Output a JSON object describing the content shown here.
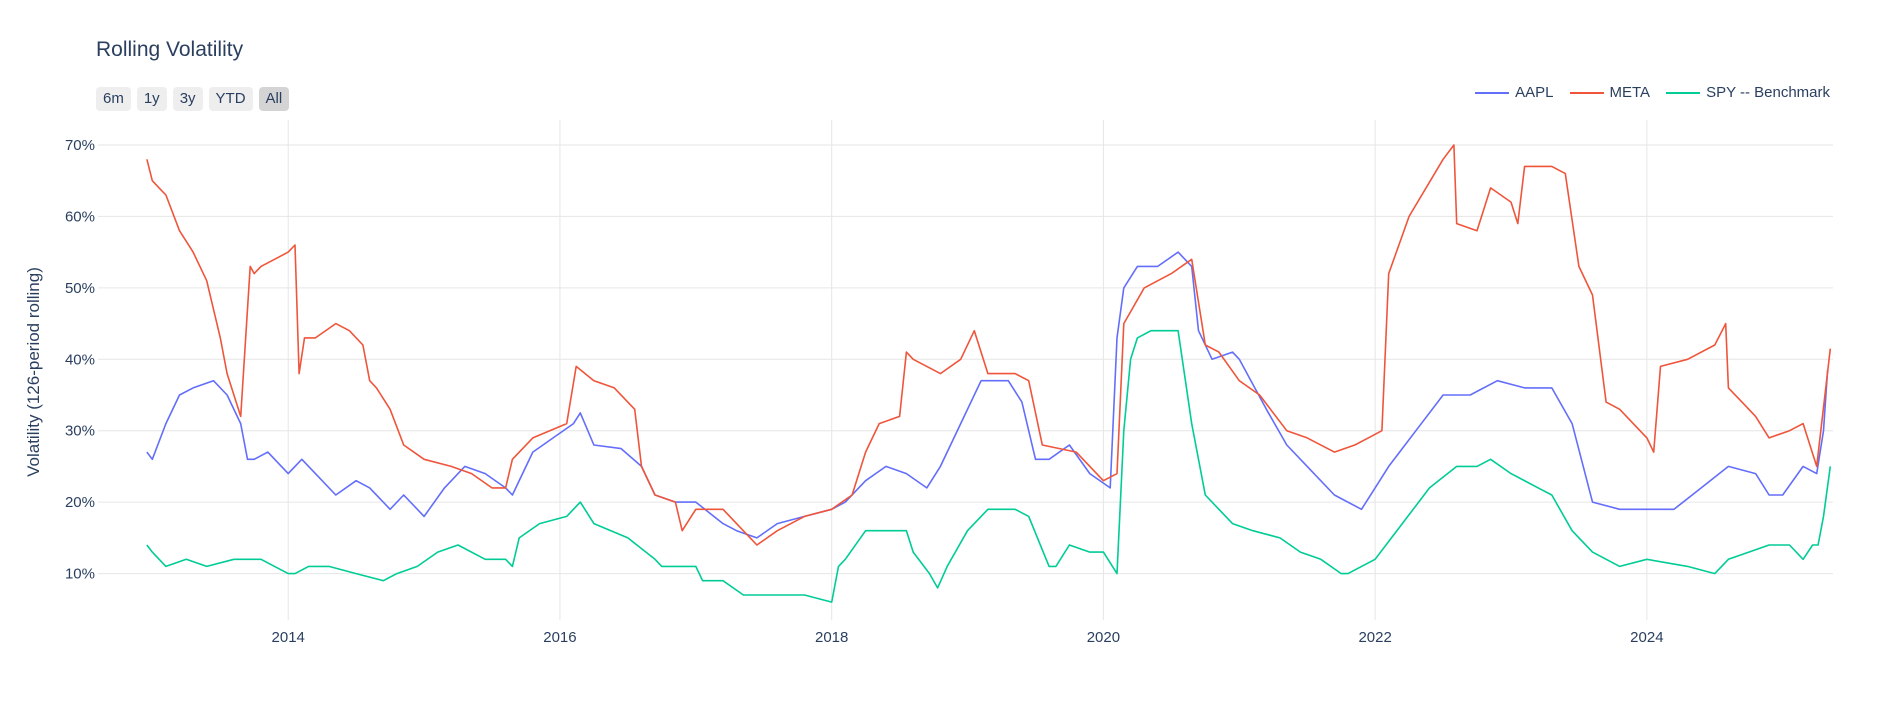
{
  "title": "Rolling Volatility",
  "range_buttons": [
    "6m",
    "1y",
    "3y",
    "YTD",
    "All"
  ],
  "active_range": "All",
  "colors": {
    "grid": "#e6e6e6",
    "text": "#2a3f5f",
    "background": "#ffffff"
  },
  "chart_data": {
    "type": "line",
    "title": "Rolling Volatility",
    "xlabel": "",
    "ylabel": "Volatility (126-period rolling)",
    "xlim": [
      2012.6,
      2025.37
    ],
    "ylim": [
      0.035,
      0.735
    ],
    "x_ticks": [
      2014,
      2016,
      2018,
      2020,
      2022,
      2024
    ],
    "x_tick_labels": [
      "2014",
      "2016",
      "2018",
      "2020",
      "2022",
      "2024"
    ],
    "y_ticks": [
      0.1,
      0.2,
      0.3,
      0.4,
      0.5,
      0.6,
      0.7
    ],
    "y_tick_labels": [
      "10%",
      "20%",
      "30%",
      "40%",
      "50%",
      "60%",
      "70%"
    ],
    "grid": true,
    "legend_position": "top-right",
    "series": [
      {
        "name": "AAPL",
        "color": "#636efa",
        "x": [
          2012.96,
          2013.0,
          2013.1,
          2013.2,
          2013.3,
          2013.45,
          2013.55,
          2013.65,
          2013.7,
          2013.75,
          2013.85,
          2014.0,
          2014.1,
          2014.2,
          2014.35,
          2014.5,
          2014.6,
          2014.75,
          2014.85,
          2015.0,
          2015.15,
          2015.3,
          2015.45,
          2015.6,
          2015.65,
          2015.8,
          2015.95,
          2016.1,
          2016.15,
          2016.25,
          2016.45,
          2016.6,
          2016.7,
          2016.85,
          2017.0,
          2017.2,
          2017.3,
          2017.45,
          2017.6,
          2017.8,
          2018.0,
          2018.1,
          2018.25,
          2018.4,
          2018.55,
          2018.7,
          2018.8,
          2018.95,
          2019.1,
          2019.3,
          2019.4,
          2019.5,
          2019.6,
          2019.75,
          2019.9,
          2020.05,
          2020.1,
          2020.15,
          2020.25,
          2020.4,
          2020.55,
          2020.65,
          2020.7,
          2020.8,
          2020.95,
          2021.0,
          2021.2,
          2021.35,
          2021.5,
          2021.7,
          2021.9,
          2022.0,
          2022.1,
          2022.3,
          2022.5,
          2022.7,
          2022.9,
          2023.1,
          2023.3,
          2023.45,
          2023.6,
          2023.8,
          2024.0,
          2024.2,
          2024.4,
          2024.6,
          2024.8,
          2024.9,
          2025.0,
          2025.15,
          2025.25,
          2025.3,
          2025.33
        ],
        "y": [
          0.27,
          0.26,
          0.31,
          0.35,
          0.36,
          0.37,
          0.35,
          0.31,
          0.26,
          0.26,
          0.27,
          0.24,
          0.26,
          0.24,
          0.21,
          0.23,
          0.22,
          0.19,
          0.21,
          0.18,
          0.22,
          0.25,
          0.24,
          0.22,
          0.21,
          0.27,
          0.29,
          0.31,
          0.325,
          0.28,
          0.275,
          0.25,
          0.21,
          0.2,
          0.2,
          0.17,
          0.16,
          0.15,
          0.17,
          0.18,
          0.19,
          0.2,
          0.23,
          0.25,
          0.24,
          0.22,
          0.25,
          0.31,
          0.37,
          0.37,
          0.34,
          0.26,
          0.26,
          0.28,
          0.24,
          0.22,
          0.43,
          0.5,
          0.53,
          0.53,
          0.55,
          0.53,
          0.44,
          0.4,
          0.41,
          0.4,
          0.33,
          0.28,
          0.25,
          0.21,
          0.19,
          0.22,
          0.25,
          0.3,
          0.35,
          0.35,
          0.37,
          0.36,
          0.36,
          0.31,
          0.2,
          0.19,
          0.19,
          0.19,
          0.22,
          0.25,
          0.24,
          0.21,
          0.21,
          0.25,
          0.24,
          0.3,
          0.385
        ]
      },
      {
        "name": "META",
        "color": "#ef553b",
        "x": [
          2012.96,
          2013.0,
          2013.05,
          2013.1,
          2013.2,
          2013.3,
          2013.4,
          2013.5,
          2013.55,
          2013.6,
          2013.65,
          2013.72,
          2013.75,
          2013.8,
          2013.9,
          2014.0,
          2014.05,
          2014.08,
          2014.12,
          2014.2,
          2014.35,
          2014.45,
          2014.55,
          2014.6,
          2014.65,
          2014.75,
          2014.85,
          2015.0,
          2015.2,
          2015.35,
          2015.5,
          2015.6,
          2015.65,
          2015.8,
          2016.05,
          2016.12,
          2016.25,
          2016.4,
          2016.55,
          2016.6,
          2016.7,
          2016.85,
          2016.9,
          2017.0,
          2017.2,
          2017.4,
          2017.45,
          2017.6,
          2017.8,
          2018.0,
          2018.15,
          2018.25,
          2018.35,
          2018.5,
          2018.55,
          2018.6,
          2018.8,
          2018.95,
          2019.05,
          2019.15,
          2019.35,
          2019.45,
          2019.55,
          2019.8,
          2019.95,
          2020.0,
          2020.1,
          2020.15,
          2020.3,
          2020.5,
          2020.65,
          2020.75,
          2020.85,
          2021.0,
          2021.15,
          2021.35,
          2021.5,
          2021.7,
          2021.85,
          2021.95,
          2022.05,
          2022.1,
          2022.25,
          2022.5,
          2022.58,
          2022.6,
          2022.75,
          2022.85,
          2023.0,
          2023.05,
          2023.1,
          2023.3,
          2023.4,
          2023.5,
          2023.6,
          2023.7,
          2023.8,
          2024.0,
          2024.05,
          2024.1,
          2024.3,
          2024.5,
          2024.58,
          2024.6,
          2024.7,
          2024.8,
          2024.9,
          2025.05,
          2025.15,
          2025.25,
          2025.35
        ],
        "y": [
          0.68,
          0.65,
          0.64,
          0.63,
          0.58,
          0.55,
          0.51,
          0.43,
          0.38,
          0.35,
          0.32,
          0.53,
          0.52,
          0.53,
          0.54,
          0.55,
          0.56,
          0.38,
          0.43,
          0.43,
          0.45,
          0.44,
          0.42,
          0.37,
          0.36,
          0.33,
          0.28,
          0.26,
          0.25,
          0.24,
          0.22,
          0.22,
          0.26,
          0.29,
          0.31,
          0.39,
          0.37,
          0.36,
          0.33,
          0.25,
          0.21,
          0.2,
          0.16,
          0.19,
          0.19,
          0.15,
          0.14,
          0.16,
          0.18,
          0.19,
          0.21,
          0.27,
          0.31,
          0.32,
          0.41,
          0.4,
          0.38,
          0.4,
          0.44,
          0.38,
          0.38,
          0.37,
          0.28,
          0.27,
          0.24,
          0.23,
          0.24,
          0.45,
          0.5,
          0.52,
          0.54,
          0.42,
          0.41,
          0.37,
          0.35,
          0.3,
          0.29,
          0.27,
          0.28,
          0.29,
          0.3,
          0.52,
          0.6,
          0.68,
          0.7,
          0.59,
          0.58,
          0.64,
          0.62,
          0.59,
          0.67,
          0.67,
          0.66,
          0.53,
          0.49,
          0.34,
          0.33,
          0.29,
          0.27,
          0.39,
          0.4,
          0.42,
          0.45,
          0.36,
          0.34,
          0.32,
          0.29,
          0.3,
          0.31,
          0.25,
          0.415
        ]
      },
      {
        "name": "SPY -- Benchmark",
        "color": "#00cc96",
        "x": [
          2012.96,
          2013.0,
          2013.1,
          2013.25,
          2013.4,
          2013.6,
          2013.8,
          2014.0,
          2014.05,
          2014.15,
          2014.3,
          2014.5,
          2014.7,
          2014.8,
          2014.95,
          2015.1,
          2015.25,
          2015.45,
          2015.6,
          2015.65,
          2015.7,
          2015.85,
          2016.05,
          2016.15,
          2016.25,
          2016.5,
          2016.7,
          2016.75,
          2017.0,
          2017.05,
          2017.2,
          2017.35,
          2017.5,
          2017.8,
          2018.0,
          2018.05,
          2018.1,
          2018.25,
          2018.4,
          2018.55,
          2018.6,
          2018.72,
          2018.78,
          2018.85,
          2019.0,
          2019.15,
          2019.35,
          2019.45,
          2019.6,
          2019.65,
          2019.75,
          2019.9,
          2020.0,
          2020.1,
          2020.15,
          2020.2,
          2020.25,
          2020.35,
          2020.55,
          2020.65,
          2020.75,
          2020.85,
          2020.95,
          2021.1,
          2021.3,
          2021.45,
          2021.6,
          2021.75,
          2021.8,
          2022.0,
          2022.2,
          2022.4,
          2022.6,
          2022.75,
          2022.85,
          2023.0,
          2023.2,
          2023.3,
          2023.45,
          2023.6,
          2023.8,
          2024.0,
          2024.3,
          2024.5,
          2024.6,
          2024.75,
          2024.9,
          2025.05,
          2025.15,
          2025.22,
          2025.26,
          2025.3,
          2025.35
        ],
        "y": [
          0.14,
          0.13,
          0.11,
          0.12,
          0.11,
          0.12,
          0.12,
          0.1,
          0.1,
          0.11,
          0.11,
          0.1,
          0.09,
          0.1,
          0.11,
          0.13,
          0.14,
          0.12,
          0.12,
          0.11,
          0.15,
          0.17,
          0.18,
          0.2,
          0.17,
          0.15,
          0.12,
          0.11,
          0.11,
          0.09,
          0.09,
          0.07,
          0.07,
          0.07,
          0.06,
          0.11,
          0.12,
          0.16,
          0.16,
          0.16,
          0.13,
          0.1,
          0.08,
          0.11,
          0.16,
          0.19,
          0.19,
          0.18,
          0.11,
          0.11,
          0.14,
          0.13,
          0.13,
          0.1,
          0.3,
          0.4,
          0.43,
          0.44,
          0.44,
          0.31,
          0.21,
          0.19,
          0.17,
          0.16,
          0.15,
          0.13,
          0.12,
          0.1,
          0.1,
          0.12,
          0.17,
          0.22,
          0.25,
          0.25,
          0.26,
          0.24,
          0.22,
          0.21,
          0.16,
          0.13,
          0.11,
          0.12,
          0.11,
          0.1,
          0.12,
          0.13,
          0.14,
          0.14,
          0.12,
          0.14,
          0.14,
          0.18,
          0.25
        ]
      }
    ]
  }
}
